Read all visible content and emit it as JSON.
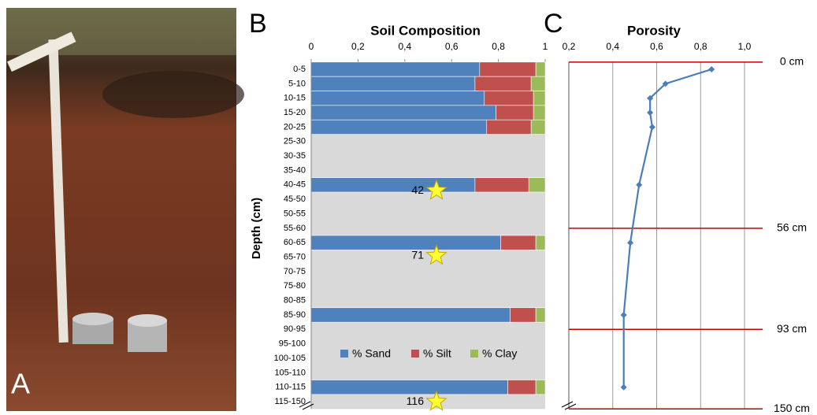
{
  "panel_labels": [
    "A",
    "B",
    "C"
  ],
  "chart_data": [
    {
      "type": "bar",
      "orientation": "horizontal",
      "stacked": true,
      "title": "Soil Composition",
      "y_label": "Depth (cm)",
      "categories": [
        "0-5",
        "5-10",
        "10-15",
        "15-20",
        "20-25",
        "25-30",
        "30-35",
        "35-40",
        "40-45",
        "45-50",
        "50-55",
        "55-60",
        "60-65",
        "65-70",
        "70-75",
        "75-80",
        "80-85",
        "85-90",
        "90-95",
        "95-100",
        "100-105",
        "105-110",
        "110-115",
        "115-150"
      ],
      "series": [
        {
          "name": "% Sand",
          "color": "#4f81bd",
          "values": [
            0.72,
            0.7,
            0.74,
            0.79,
            0.75,
            null,
            null,
            null,
            0.7,
            null,
            null,
            null,
            0.81,
            null,
            null,
            null,
            null,
            0.85,
            null,
            null,
            null,
            null,
            0.84,
            null
          ]
        },
        {
          "name": "% Silt",
          "color": "#c0504d",
          "values": [
            0.24,
            0.24,
            0.21,
            0.16,
            0.19,
            null,
            null,
            null,
            0.23,
            null,
            null,
            null,
            0.15,
            null,
            null,
            null,
            null,
            0.11,
            null,
            null,
            null,
            null,
            0.12,
            null
          ]
        },
        {
          "name": "% Clay",
          "color": "#9bbb59",
          "values": [
            0.04,
            0.06,
            0.05,
            0.05,
            0.06,
            null,
            null,
            null,
            0.07,
            null,
            null,
            null,
            0.04,
            null,
            null,
            null,
            null,
            0.04,
            null,
            null,
            null,
            null,
            0.04,
            null
          ]
        }
      ],
      "xlim": [
        0,
        1
      ],
      "xticks": [
        0,
        {
          "value": 0.2,
          "label": "0,2"
        },
        {
          "value": 0.4,
          "label": "0,4"
        },
        {
          "value": 0.6,
          "label": "0,6"
        },
        {
          "value": 0.8,
          "label": "0,8"
        },
        1
      ],
      "annotations": [
        42,
        71,
        116
      ]
    },
    {
      "type": "line",
      "title": "Porosity",
      "color": "#4a7ebb",
      "values": [
        0.85,
        0.64,
        0.57,
        0.57,
        0.58,
        0.52,
        0.48,
        0.45,
        0.45
      ],
      "xlim": [
        0.2,
        1.0
      ],
      "xticks": [
        {
          "value": 0.2,
          "label": "0,2"
        },
        {
          "value": 0.4,
          "label": "0,4"
        },
        {
          "value": 0.6,
          "label": "0,6"
        },
        {
          "value": 0.8,
          "label": "0,8"
        },
        {
          "value": 1.0,
          "label": "1,0"
        }
      ],
      "grid": true,
      "reference_lines": [
        "0 cm",
        "56 cm",
        "93 cm",
        "150 cm"
      ],
      "reference_color": "#c00000"
    }
  ]
}
